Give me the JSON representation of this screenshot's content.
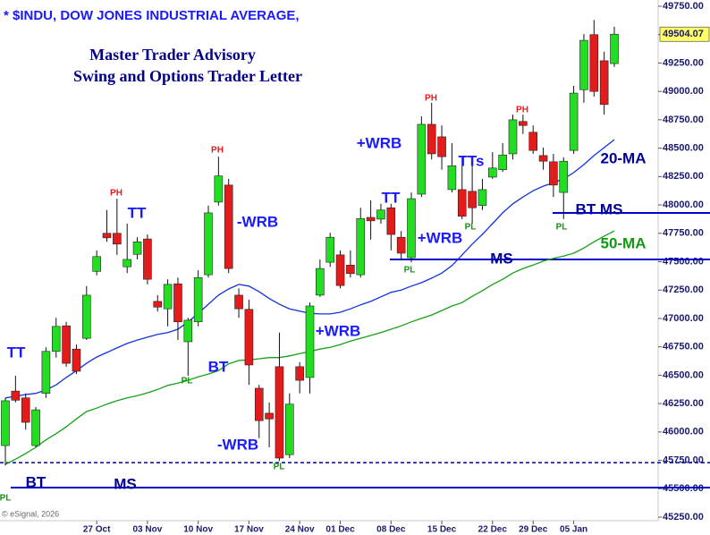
{
  "chart_data": {
    "type": "candlestick",
    "title": "* $INDU, DOW JONES INDUSTRIAL AVERAGE,",
    "subtitle": [
      "Master Trader Advisory",
      "Swing and Options Trader Letter"
    ],
    "source": "© eSignal, 2026",
    "categories": [
      null,
      null,
      null,
      null,
      null,
      null,
      null,
      null,
      null,
      "27 Oct",
      null,
      null,
      null,
      null,
      "03 Nov",
      null,
      null,
      null,
      null,
      "10 Nov",
      null,
      null,
      null,
      null,
      "17 Nov",
      null,
      null,
      null,
      null,
      "24 Nov",
      null,
      null,
      null,
      "01 Dec",
      null,
      null,
      null,
      null,
      "08 Dec",
      null,
      null,
      null,
      null,
      "15 Dec",
      null,
      null,
      null,
      null,
      "22 Dec",
      null,
      null,
      null,
      "29 Dec",
      null,
      null,
      null,
      "05 Jan",
      null,
      null,
      null,
      null
    ],
    "candles": {
      "up_color": "#22dd22",
      "down_color": "#e41b1b",
      "open": [
        45880,
        46360,
        46300,
        45880,
        46340,
        46710,
        46935,
        46730,
        46825,
        47415,
        47750,
        47750,
        47455,
        47565,
        47700,
        47150,
        47085,
        47305,
        46795,
        46970,
        47385,
        48025,
        48175,
        47205,
        47080,
        46385,
        46165,
        46575,
        45800,
        46575,
        46480,
        47205,
        47495,
        47560,
        47470,
        47385,
        47890,
        47875,
        47975,
        47715,
        47535,
        48095,
        48710,
        48600,
        48135,
        48135,
        48120,
        47995,
        48245,
        48310,
        48450,
        48735,
        48640,
        48435,
        48380,
        48110,
        48480,
        49015,
        49500,
        49270,
        49245
      ],
      "high": [
        46300,
        46495,
        46340,
        46220,
        46745,
        47005,
        46970,
        46770,
        47285,
        47600,
        47955,
        48055,
        47835,
        47715,
        47740,
        47205,
        47345,
        47360,
        47005,
        47425,
        47995,
        48425,
        48230,
        47265,
        47165,
        46415,
        46260,
        46875,
        46340,
        46615,
        47140,
        47520,
        47755,
        47600,
        47600,
        47975,
        48040,
        48010,
        48010,
        47770,
        48110,
        48780,
        48900,
        48700,
        48545,
        48425,
        48345,
        48230,
        48465,
        48545,
        48795,
        48795,
        48700,
        48505,
        48450,
        48420,
        49050,
        49505,
        49630,
        49350,
        49570
      ],
      "low": [
        45705,
        46260,
        46020,
        45865,
        46300,
        46655,
        46575,
        46510,
        46810,
        47380,
        47675,
        47560,
        47400,
        47520,
        47300,
        47060,
        46930,
        46810,
        46495,
        46930,
        47360,
        47995,
        47400,
        47005,
        46415,
        45945,
        45865,
        45745,
        45770,
        46340,
        46340,
        47190,
        47455,
        47265,
        47360,
        47360,
        47695,
        47835,
        47600,
        47520,
        47495,
        48070,
        48400,
        48310,
        48110,
        47875,
        47835,
        47955,
        48230,
        48290,
        48400,
        48625,
        48450,
        48310,
        48070,
        47875,
        48450,
        48900,
        48955,
        48795,
        49215
      ],
      "close": [
        46275,
        46280,
        46085,
        46195,
        46710,
        46930,
        46605,
        46535,
        47205,
        47545,
        47710,
        47655,
        47520,
        47675,
        47345,
        47100,
        47300,
        46970,
        46985,
        47360,
        47930,
        48255,
        47440,
        47085,
        46590,
        46100,
        46115,
        45770,
        46245,
        46455,
        47110,
        47440,
        47715,
        47290,
        47395,
        47880,
        47860,
        47955,
        47740,
        47575,
        48055,
        48710,
        48450,
        48425,
        48345,
        47900,
        47975,
        48135,
        48325,
        48440,
        48750,
        48700,
        48480,
        48385,
        48175,
        48385,
        48985,
        49450,
        49000,
        48885,
        49504.07
      ]
    },
    "lines": [
      {
        "name": "20-MA",
        "color": "#1133dd",
        "values": [
          46300,
          46315,
          46330,
          46340,
          46370,
          46415,
          46480,
          46540,
          46605,
          46660,
          46700,
          46740,
          46780,
          46810,
          46835,
          46860,
          46875,
          46905,
          46970,
          47045,
          47125,
          47205,
          47260,
          47300,
          47285,
          47235,
          47175,
          47125,
          47085,
          47065,
          47045,
          47040,
          47040,
          47055,
          47085,
          47120,
          47150,
          47190,
          47230,
          47250,
          47285,
          47315,
          47355,
          47400,
          47465,
          47560,
          47655,
          47740,
          47835,
          47930,
          48010,
          48070,
          48125,
          48165,
          48195,
          48230,
          48285,
          48355,
          48435,
          48505,
          48575
        ]
      },
      {
        "name": "50-MA",
        "color": "#18a018",
        "values": [
          45715,
          45760,
          45810,
          45865,
          45930,
          45985,
          46045,
          46115,
          46180,
          46210,
          46245,
          46275,
          46300,
          46320,
          46345,
          46375,
          46410,
          46430,
          46455,
          46485,
          46510,
          46540,
          46600,
          46630,
          46635,
          46645,
          46655,
          46655,
          46670,
          46690,
          46710,
          46730,
          46745,
          46770,
          46800,
          46825,
          46850,
          46875,
          46905,
          46935,
          46970,
          47000,
          47030,
          47070,
          47110,
          47140,
          47195,
          47245,
          47300,
          47345,
          47400,
          47440,
          47470,
          47505,
          47530,
          47550,
          47575,
          47620,
          47675,
          47725,
          47770
        ]
      }
    ],
    "levels": [
      {
        "value": 45730,
        "style": "dashed",
        "color": "#000099"
      },
      {
        "value": 45510,
        "label": "MS",
        "style": "solid",
        "color": "#0000cc"
      },
      {
        "value": 47520,
        "label": "MS",
        "style": "solid",
        "color": "#0000cc"
      },
      {
        "value": 47930,
        "label": "BT MS",
        "style": "solid",
        "color": "#0000cc"
      }
    ],
    "annotations": [
      "TT",
      "PL",
      "BT",
      "PH",
      "TT",
      "PL",
      "BT",
      "PH",
      "-WRB",
      "-WRB",
      "PL",
      "+WRB",
      "+WRB",
      "TT",
      "PL",
      "+WRB",
      "PH",
      "TTs",
      "PL",
      "PH",
      "PL"
    ],
    "ylim": [
      45250,
      49750
    ],
    "yticks": [
      {
        "value": 45250,
        "label": "45250.00"
      },
      {
        "value": 45500,
        "label": "45500.00"
      },
      {
        "value": 45750,
        "label": "45750.00"
      },
      {
        "value": 46000,
        "label": "46000.00"
      },
      {
        "value": 46250,
        "label": "46250.00"
      },
      {
        "value": 46500,
        "label": "46500.00"
      },
      {
        "value": 46750,
        "label": "46750.00"
      },
      {
        "value": 47000,
        "label": "47000.00"
      },
      {
        "value": 47250,
        "label": "47250.00"
      },
      {
        "value": 47500,
        "label": "47500.00"
      },
      {
        "value": 47750,
        "label": "47750.00"
      },
      {
        "value": 48000,
        "label": "48000.00"
      },
      {
        "value": 48250,
        "label": "48250.00"
      },
      {
        "value": 48500,
        "label": "48500.00"
      },
      {
        "value": 48750,
        "label": "48750.00"
      },
      {
        "value": 49000,
        "label": "49000.00"
      },
      {
        "value": 49250,
        "label": "49250.00"
      },
      {
        "value": 49500,
        "label": "49500.00"
      },
      {
        "value": 49750,
        "label": "49750.00"
      }
    ],
    "grid": false
  }
}
